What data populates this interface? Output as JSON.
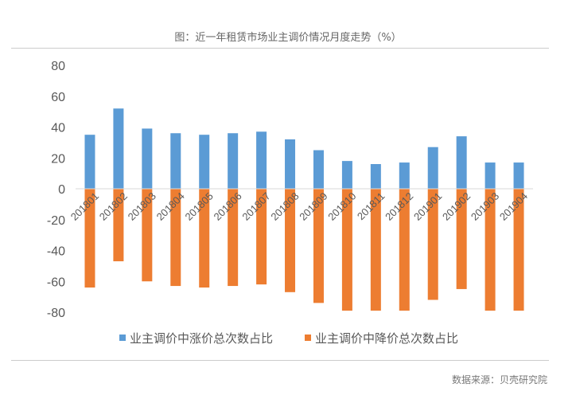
{
  "chart_data": {
    "type": "bar",
    "title": "图：近一年租赁市场业主调价情况月度走势（%）",
    "source": "数据来源：贝壳研究院",
    "categories": [
      "201801",
      "201802",
      "201803",
      "201804",
      "201805",
      "201806",
      "201807",
      "201808",
      "201809",
      "201810",
      "201811",
      "201812",
      "201901",
      "201902",
      "201903",
      "201904"
    ],
    "series": [
      {
        "name": "业主调价中涨价总次数占比",
        "color": "#5b9bd5",
        "values": [
          35,
          52,
          39,
          36,
          35,
          36,
          37,
          32,
          25,
          18,
          16,
          17,
          27,
          34,
          17,
          17
        ]
      },
      {
        "name": "业主调价中降价总次数占比",
        "color": "#ed7d31",
        "values": [
          -64,
          -47,
          -60,
          -63,
          -64,
          -63,
          -62,
          -67,
          -74,
          -79,
          -79,
          -79,
          -72,
          -65,
          -79,
          -79
        ]
      }
    ],
    "ylim": [
      -80,
      80
    ],
    "yticks": [
      80,
      60,
      40,
      20,
      0,
      -20,
      -40,
      -60,
      -80
    ],
    "xlabel": "",
    "ylabel": "",
    "grid": false,
    "legend": "bottom"
  }
}
